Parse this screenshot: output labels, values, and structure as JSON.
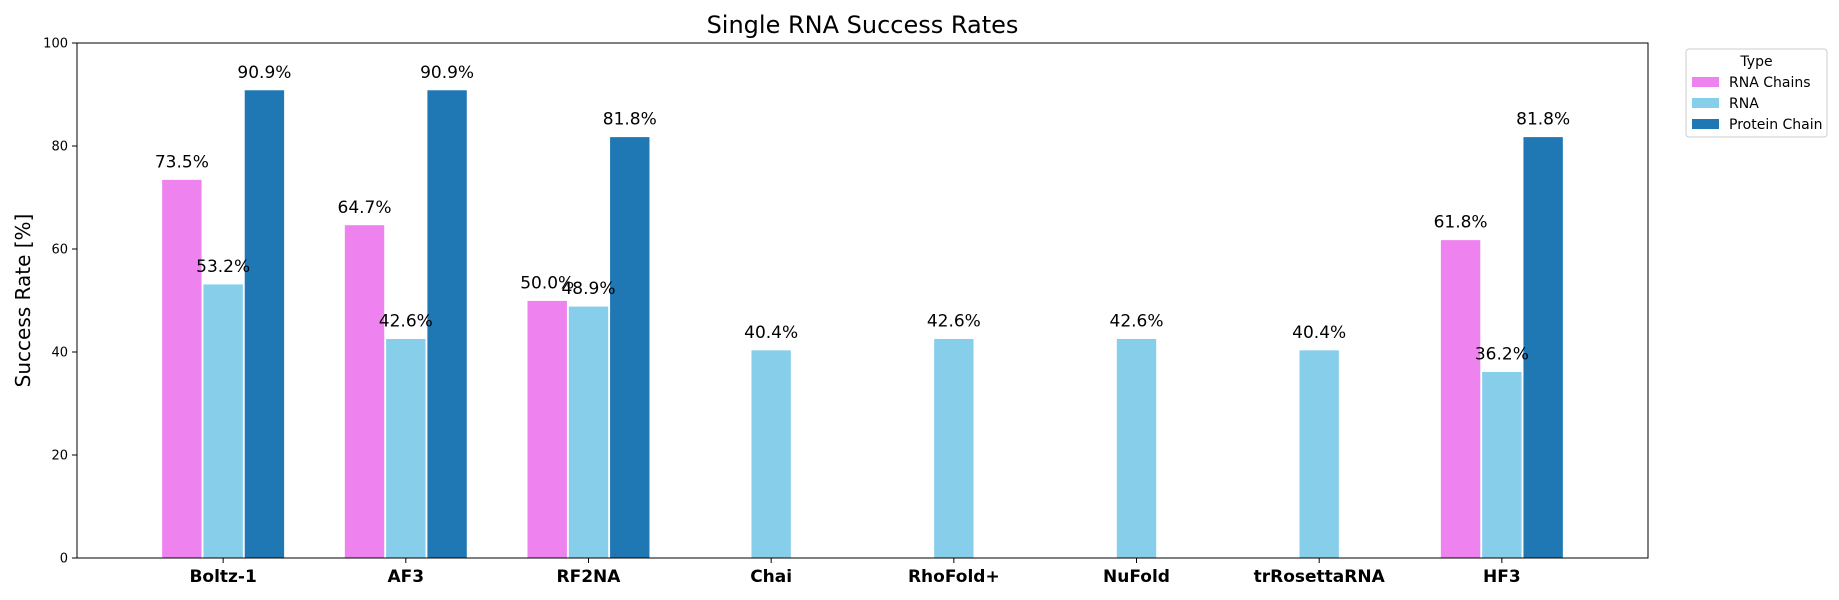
{
  "chart_data": {
    "type": "bar",
    "title": "Single RNA Success Rates",
    "xlabel": "",
    "ylabel": "Success Rate [%]",
    "ylim": [
      0,
      100
    ],
    "yticks": [
      0,
      20,
      40,
      60,
      80,
      100
    ],
    "grid": false,
    "legend_position": "outside-top-right",
    "legend_title": "Type",
    "categories": [
      "Boltz-1",
      "AF3",
      "RF2NA",
      "Chai",
      "RhoFold+",
      "NuFold",
      "trRosettaRNA",
      "HF3"
    ],
    "series": [
      {
        "name": "RNA Chains",
        "color": "#ee82ee",
        "values": [
          73.5,
          64.7,
          50.0,
          null,
          null,
          null,
          null,
          61.8
        ],
        "labels": [
          "73.5%",
          "64.7%",
          "50.0%",
          null,
          null,
          null,
          null,
          "61.8%"
        ]
      },
      {
        "name": "RNA",
        "color": "#87ceeb",
        "values": [
          53.2,
          42.6,
          48.9,
          40.4,
          42.6,
          42.6,
          40.4,
          36.2
        ],
        "labels": [
          "53.2%",
          "42.6%",
          "48.9%",
          "40.4%",
          "42.6%",
          "42.6%",
          "40.4%",
          "36.2%"
        ]
      },
      {
        "name": "Protein Chain",
        "color": "#1f77b4",
        "values": [
          90.9,
          90.9,
          81.8,
          null,
          null,
          null,
          null,
          81.8
        ],
        "labels": [
          "90.9%",
          "90.9%",
          "81.8%",
          null,
          null,
          null,
          null,
          "81.8%"
        ]
      }
    ]
  }
}
